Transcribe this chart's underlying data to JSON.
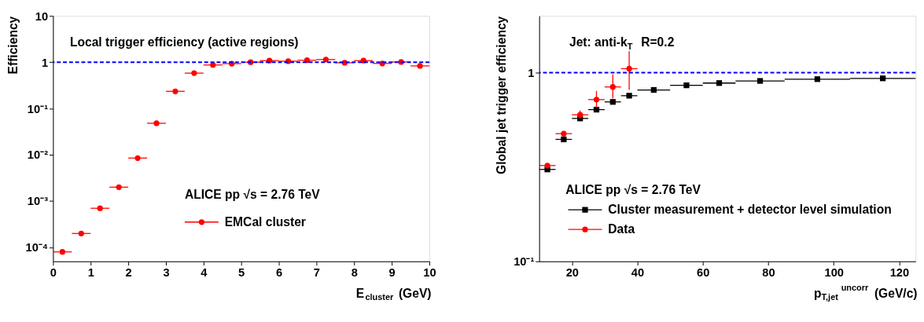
{
  "chart_data": [
    {
      "type": "scatter",
      "log": "y",
      "grid": false,
      "legend": "bottom",
      "xlabel": "E$_{cluster}$ (GeV)",
      "ylabel": "Efficiency",
      "xlim": [
        0,
        10
      ],
      "ylim": [
        5e-05,
        10
      ],
      "xticks": [
        0,
        1,
        2,
        3,
        4,
        5,
        6,
        7,
        8,
        9,
        10
      ],
      "yticks": [
        {
          "value": 0.0001,
          "label": "10⁻⁴"
        },
        {
          "value": 0.001,
          "label": "10⁻³"
        },
        {
          "value": 0.01,
          "label": "10⁻²"
        },
        {
          "value": 0.1,
          "label": "10⁻¹"
        },
        1,
        10
      ],
      "annotations": [
        "Local trigger efficiency (active regions)",
        "ALICE pp √s = 2.76 TeV"
      ],
      "ref_lines": [
        {
          "axis": "y",
          "value": 1,
          "color": "#0000ff",
          "line_style": "dashed"
        }
      ],
      "series": [
        {
          "name": "EMCal cluster",
          "color": "#ff0000",
          "marker": "circle",
          "x": [
            0.25,
            0.75,
            1.25,
            1.75,
            2.25,
            2.75,
            3.25,
            3.75,
            4.25,
            4.75,
            5.25,
            5.75,
            6.25,
            6.75,
            7.25,
            7.75,
            8.25,
            8.75,
            9.25,
            9.75
          ],
          "values": [
            8e-05,
            0.0002,
            0.0007,
            0.002,
            0.0085,
            0.048,
            0.235,
            0.58,
            0.87,
            0.93,
            1.0,
            1.08,
            1.05,
            1.1,
            1.14,
            0.97,
            1.08,
            0.94,
            1.01,
            0.83
          ],
          "xerrors": [
            0.25,
            0.25,
            0.25,
            0.25,
            0.25,
            0.25,
            0.25,
            0.25,
            0.25,
            0.25,
            0.25,
            0.25,
            0.25,
            0.25,
            0.25,
            0.25,
            0.25,
            0.25,
            0.25,
            0.25
          ]
        }
      ]
    },
    {
      "type": "scatter",
      "log": "y",
      "grid": false,
      "legend": "bottom left",
      "xlabel": "p$_{T,jet}$$^{uncorr}$ (GeV/c)",
      "ylabel": "Global jet trigger efficiency",
      "xlim": [
        10,
        125
      ],
      "ylim": [
        0.1,
        2
      ],
      "xticks": [
        20,
        40,
        60,
        80,
        100,
        120
      ],
      "yticks": [
        {
          "value": 0.1,
          "label": "10⁻¹"
        },
        1
      ],
      "annotations": [
        "Jet: anti-k$_{T}$  R=0.2",
        "ALICE pp √s = 2.76 TeV"
      ],
      "ref_lines": [
        {
          "axis": "y",
          "value": 1,
          "color": "#0000ff",
          "line_style": "dashed"
        }
      ],
      "series": [
        {
          "name": "Cluster measurement + detector level simulation",
          "color": "#000000",
          "marker": "square",
          "x": [
            12.5,
            17.5,
            22.5,
            27.5,
            32.5,
            37.5,
            45,
            55,
            65,
            77.5,
            95,
            115
          ],
          "values": [
            0.307,
            0.443,
            0.572,
            0.637,
            0.7,
            0.755,
            0.81,
            0.857,
            0.881,
            0.904,
            0.924,
            0.933
          ],
          "xerrors": [
            2.5,
            2.5,
            2.5,
            2.5,
            2.5,
            2.5,
            5,
            5,
            5,
            7.5,
            10,
            10
          ]
        },
        {
          "name": "Data",
          "color": "#ff0000",
          "marker": "circle",
          "x": [
            12.5,
            17.5,
            22.5,
            27.5,
            32.5,
            37.5
          ],
          "values": [
            0.322,
            0.475,
            0.598,
            0.72,
            0.84,
            1.05
          ],
          "xerrors": [
            2.5,
            2.5,
            2.5,
            2.5,
            2.5,
            2.5
          ],
          "errors": [
            null,
            null,
            [
              0.57,
              0.63
            ],
            [
              0.65,
              0.8
            ],
            [
              0.73,
              0.98
            ],
            [
              0.81,
              1.3
            ]
          ]
        }
      ]
    }
  ]
}
